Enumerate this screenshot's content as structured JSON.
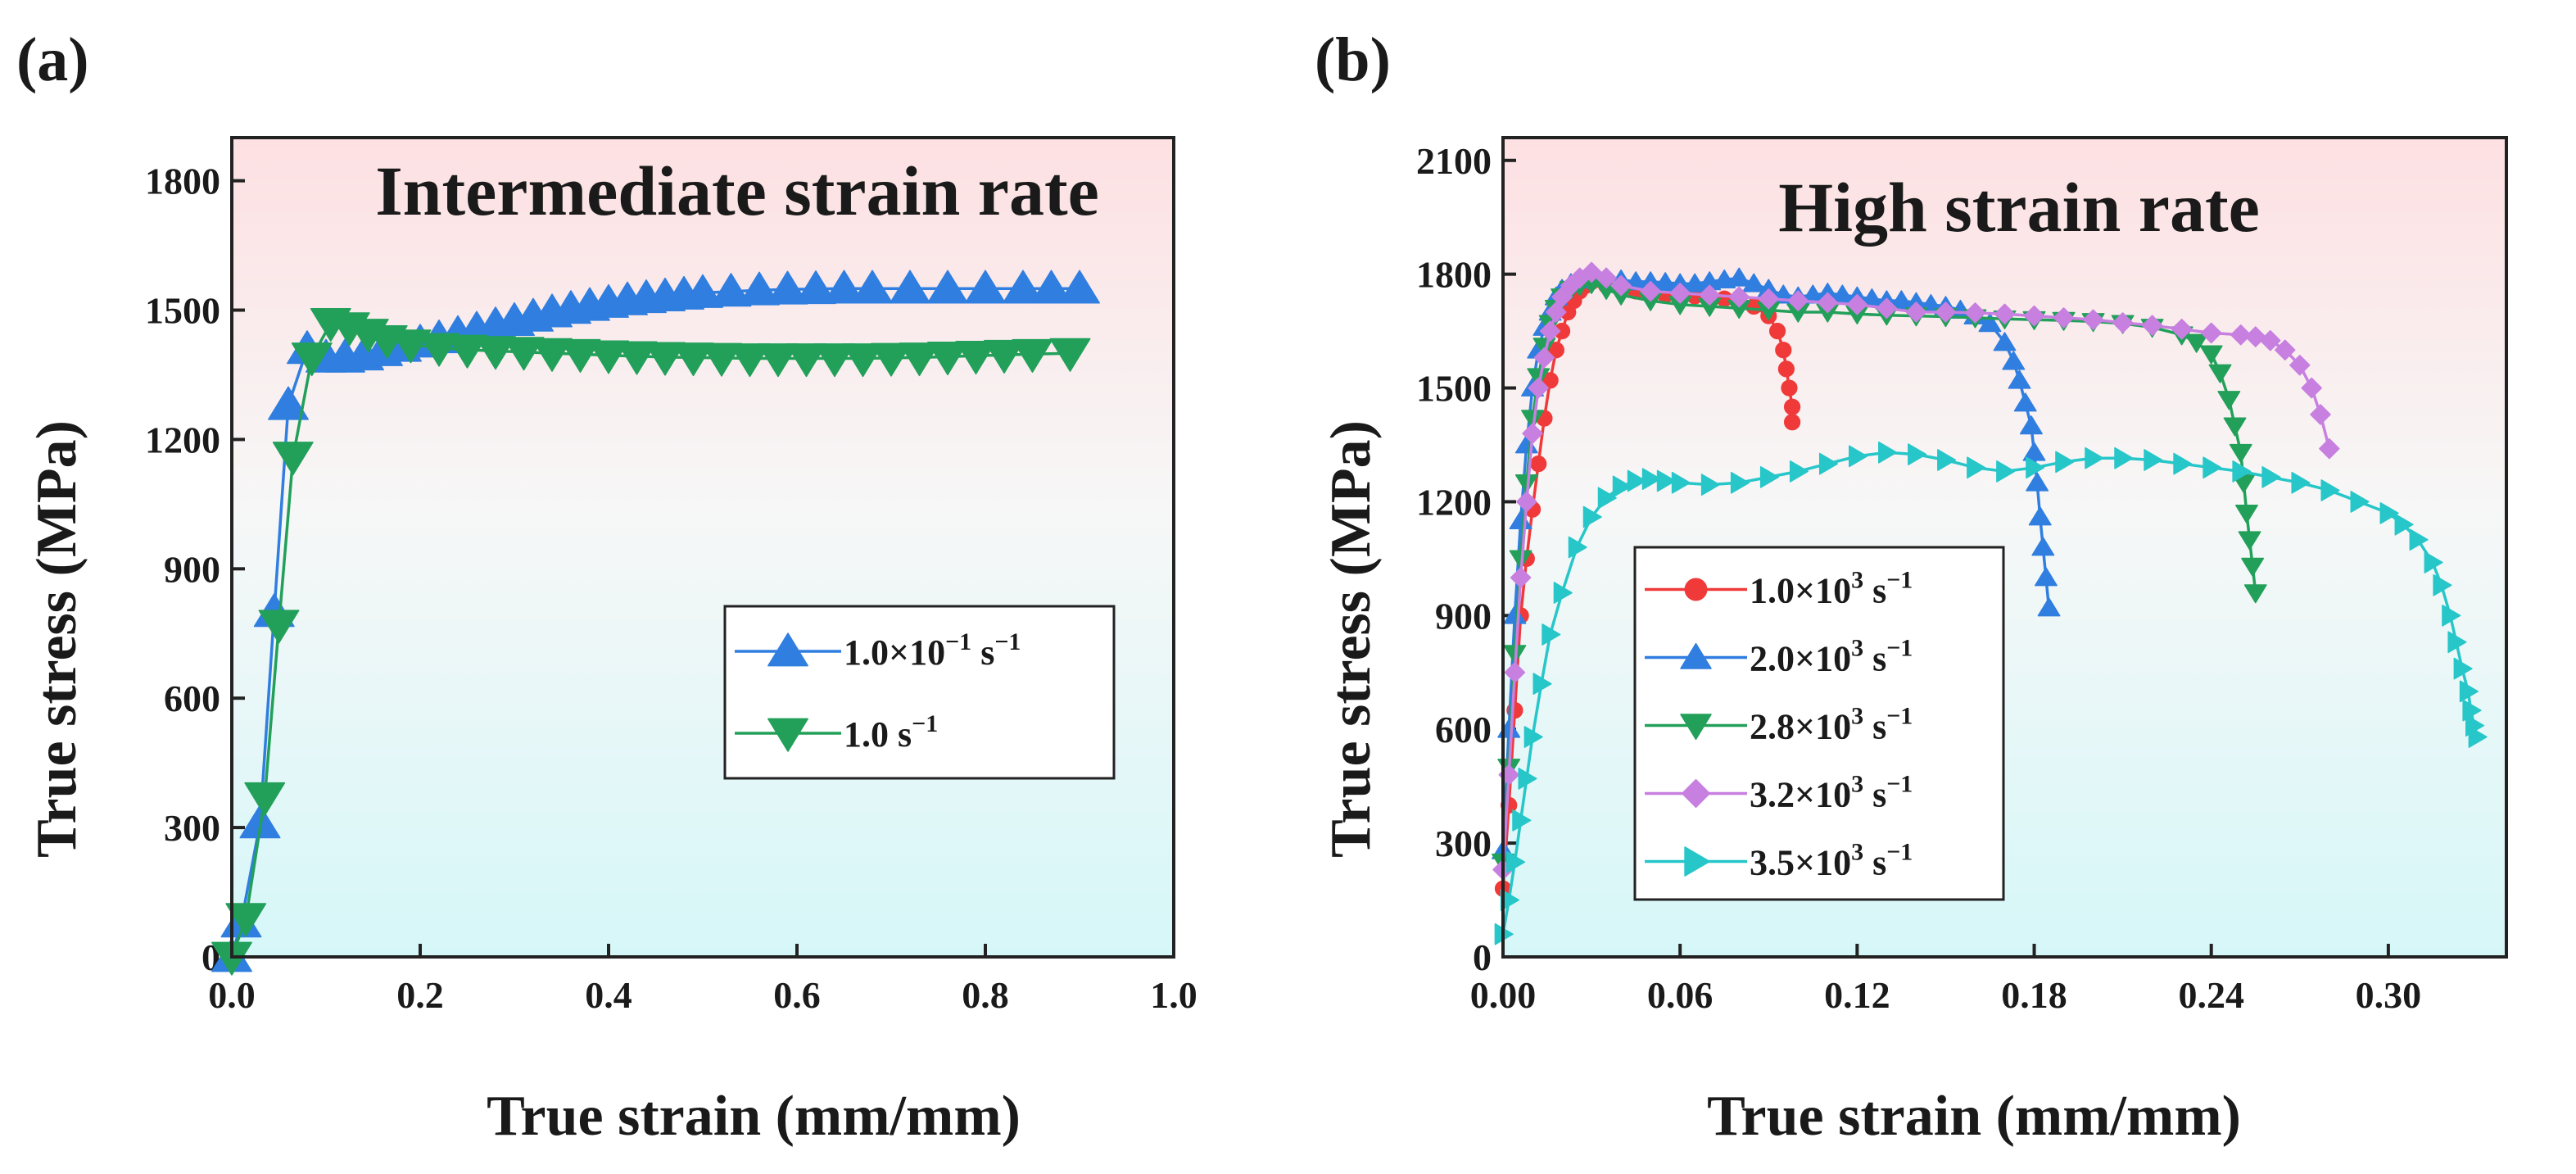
{
  "chart_data": [
    {
      "type": "line",
      "panel_label": "(a)",
      "annotation": "Intermediate strain rate",
      "annotation_color": "#1a1ae6",
      "xlabel": "True strain (mm/mm)",
      "ylabel": "True stress (MPa)",
      "xlim": [
        0,
        1.0
      ],
      "ylim": [
        0,
        1900
      ],
      "xticks": [
        0.0,
        0.2,
        0.4,
        0.6,
        0.8,
        1.0
      ],
      "xtick_labels": [
        "0.0",
        "0.2",
        "0.4",
        "0.6",
        "0.8",
        "1.0"
      ],
      "yticks": [
        0,
        300,
        600,
        900,
        1200,
        1500,
        1800
      ],
      "ytick_labels": [
        "0",
        "300",
        "600",
        "900",
        "1200",
        "1500",
        "1800"
      ],
      "background_gradient": [
        "#fde0e2",
        "#f7f7f7",
        "#d6f7f8"
      ],
      "legend": {
        "position": "center-right"
      },
      "series": [
        {
          "name": "1.0×10",
          "label_sup": "−1",
          "label_unit": " s",
          "label_unit_sup": "−1",
          "marker": "triangle-up",
          "color": "#2f7ee0",
          "x": [
            0.0,
            0.01,
            0.03,
            0.045,
            0.06,
            0.08,
            0.1,
            0.12,
            0.14,
            0.16,
            0.18,
            0.2,
            0.22,
            0.24,
            0.26,
            0.28,
            0.3,
            0.32,
            0.34,
            0.36,
            0.38,
            0.4,
            0.42,
            0.44,
            0.46,
            0.48,
            0.5,
            0.53,
            0.56,
            0.59,
            0.62,
            0.65,
            0.68,
            0.72,
            0.76,
            0.8,
            0.84,
            0.87,
            0.9
          ],
          "y": [
            0,
            80,
            310,
            800,
            1280,
            1410,
            1390,
            1390,
            1395,
            1405,
            1415,
            1425,
            1435,
            1445,
            1455,
            1465,
            1475,
            1485,
            1495,
            1503,
            1510,
            1517,
            1523,
            1528,
            1532,
            1536,
            1540,
            1543,
            1546,
            1548,
            1549,
            1550,
            1550,
            1550,
            1550,
            1550,
            1550,
            1550,
            1550
          ]
        },
        {
          "name": "1.0",
          "label_sup": "",
          "label_unit": " s",
          "label_unit_sup": "−1",
          "marker": "triangle-down",
          "color": "#22a05a",
          "x": [
            0.0,
            0.015,
            0.035,
            0.05,
            0.065,
            0.085,
            0.105,
            0.125,
            0.145,
            0.165,
            0.19,
            0.22,
            0.25,
            0.28,
            0.31,
            0.34,
            0.37,
            0.4,
            0.43,
            0.46,
            0.49,
            0.52,
            0.55,
            0.58,
            0.61,
            0.64,
            0.67,
            0.7,
            0.73,
            0.76,
            0.79,
            0.82,
            0.85,
            0.89
          ],
          "y": [
            0,
            90,
            370,
            770,
            1160,
            1390,
            1470,
            1460,
            1445,
            1430,
            1420,
            1412,
            1408,
            1405,
            1403,
            1400,
            1398,
            1395,
            1393,
            1391,
            1390,
            1389,
            1388,
            1388,
            1388,
            1388,
            1388,
            1389,
            1390,
            1392,
            1394,
            1396,
            1398,
            1400
          ]
        }
      ]
    },
    {
      "type": "line",
      "panel_label": "(b)",
      "annotation": "High strain rate",
      "annotation_color": "#f0202a",
      "xlabel": "True strain (mm/mm)",
      "ylabel": "True stress (MPa)",
      "xlim": [
        0,
        0.34
      ],
      "ylim": [
        0,
        2160
      ],
      "xticks": [
        0.0,
        0.06,
        0.12,
        0.18,
        0.24,
        0.3
      ],
      "xtick_labels": [
        "0.00",
        "0.06",
        "0.12",
        "0.18",
        "0.24",
        "0.30"
      ],
      "yticks": [
        0,
        300,
        600,
        900,
        1200,
        1500,
        1800,
        2100
      ],
      "ytick_labels": [
        "0",
        "300",
        "600",
        "900",
        "1200",
        "1500",
        "1800",
        "2100"
      ],
      "background_gradient": [
        "#fde0e2",
        "#f7f7f7",
        "#d6f7f8"
      ],
      "legend": {
        "position": "lower-left"
      },
      "series": [
        {
          "name": "1.0×10",
          "label_sup": "3",
          "label_unit": " s",
          "label_unit_sup": "−1",
          "marker": "circle",
          "color": "#f03a3a",
          "x": [
            0.0,
            0.002,
            0.004,
            0.006,
            0.008,
            0.01,
            0.012,
            0.014,
            0.016,
            0.018,
            0.02,
            0.022,
            0.024,
            0.026,
            0.028,
            0.03,
            0.035,
            0.04,
            0.045,
            0.05,
            0.055,
            0.06,
            0.065,
            0.07,
            0.075,
            0.08,
            0.085,
            0.09,
            0.093,
            0.095,
            0.096,
            0.097,
            0.098,
            0.098
          ],
          "y": [
            180,
            400,
            650,
            900,
            1050,
            1180,
            1300,
            1420,
            1520,
            1600,
            1650,
            1700,
            1730,
            1755,
            1770,
            1780,
            1770,
            1760,
            1755,
            1750,
            1745,
            1745,
            1742,
            1740,
            1735,
            1730,
            1715,
            1690,
            1650,
            1600,
            1550,
            1500,
            1450,
            1410
          ]
        },
        {
          "name": "2.0×10",
          "label_sup": "3",
          "label_unit": " s",
          "label_unit_sup": "−1",
          "marker": "triangle-up",
          "color": "#2f7ee0",
          "x": [
            0.0,
            0.002,
            0.004,
            0.006,
            0.008,
            0.01,
            0.012,
            0.014,
            0.016,
            0.018,
            0.02,
            0.023,
            0.026,
            0.03,
            0.035,
            0.04,
            0.045,
            0.05,
            0.055,
            0.06,
            0.065,
            0.07,
            0.075,
            0.08,
            0.085,
            0.09,
            0.095,
            0.1,
            0.105,
            0.11,
            0.115,
            0.12,
            0.125,
            0.13,
            0.135,
            0.14,
            0.145,
            0.15,
            0.155,
            0.16,
            0.165,
            0.17,
            0.173,
            0.175,
            0.177,
            0.179,
            0.18,
            0.181,
            0.182,
            0.183,
            0.184,
            0.185
          ],
          "y": [
            280,
            600,
            900,
            1150,
            1350,
            1500,
            1600,
            1660,
            1700,
            1740,
            1760,
            1775,
            1785,
            1795,
            1790,
            1785,
            1780,
            1780,
            1778,
            1775,
            1775,
            1780,
            1785,
            1790,
            1775,
            1760,
            1745,
            1740,
            1745,
            1750,
            1745,
            1740,
            1735,
            1730,
            1730,
            1725,
            1720,
            1715,
            1705,
            1690,
            1670,
            1620,
            1570,
            1520,
            1460,
            1400,
            1330,
            1250,
            1160,
            1080,
            1000,
            920
          ]
        },
        {
          "name": "2.8×10",
          "label_sup": "3",
          "label_unit": " s",
          "label_unit_sup": "−1",
          "marker": "triangle-down",
          "color": "#22a05a",
          "x": [
            0.0,
            0.002,
            0.004,
            0.006,
            0.008,
            0.01,
            0.012,
            0.014,
            0.016,
            0.018,
            0.02,
            0.023,
            0.026,
            0.03,
            0.035,
            0.04,
            0.05,
            0.06,
            0.07,
            0.08,
            0.09,
            0.1,
            0.11,
            0.12,
            0.13,
            0.14,
            0.15,
            0.16,
            0.17,
            0.18,
            0.19,
            0.2,
            0.21,
            0.22,
            0.23,
            0.235,
            0.24,
            0.243,
            0.246,
            0.248,
            0.25,
            0.251,
            0.252,
            0.253,
            0.254,
            0.255
          ],
          "y": [
            250,
            500,
            800,
            1050,
            1250,
            1420,
            1530,
            1610,
            1670,
            1710,
            1740,
            1760,
            1770,
            1775,
            1760,
            1745,
            1730,
            1720,
            1715,
            1710,
            1705,
            1700,
            1700,
            1695,
            1692,
            1690,
            1688,
            1685,
            1682,
            1680,
            1678,
            1675,
            1670,
            1660,
            1640,
            1620,
            1590,
            1540,
            1470,
            1400,
            1330,
            1250,
            1170,
            1100,
            1030,
            960
          ]
        },
        {
          "name": "3.2×10",
          "label_sup": "3",
          "label_unit": " s",
          "label_unit_sup": "−1",
          "marker": "diamond",
          "color": "#c77fe0",
          "x": [
            0.0,
            0.002,
            0.004,
            0.006,
            0.008,
            0.01,
            0.012,
            0.014,
            0.016,
            0.018,
            0.02,
            0.023,
            0.026,
            0.03,
            0.035,
            0.04,
            0.05,
            0.06,
            0.07,
            0.08,
            0.09,
            0.1,
            0.11,
            0.12,
            0.13,
            0.14,
            0.15,
            0.16,
            0.17,
            0.18,
            0.19,
            0.2,
            0.21,
            0.22,
            0.23,
            0.24,
            0.25,
            0.255,
            0.26,
            0.265,
            0.27,
            0.274,
            0.277,
            0.28
          ],
          "y": [
            230,
            480,
            750,
            1000,
            1200,
            1380,
            1500,
            1580,
            1650,
            1700,
            1740,
            1770,
            1790,
            1805,
            1790,
            1770,
            1755,
            1750,
            1745,
            1740,
            1735,
            1730,
            1725,
            1720,
            1710,
            1700,
            1700,
            1698,
            1695,
            1690,
            1685,
            1680,
            1672,
            1665,
            1655,
            1645,
            1640,
            1635,
            1625,
            1600,
            1560,
            1500,
            1430,
            1340
          ]
        },
        {
          "name": "3.5×10",
          "label_sup": "3",
          "label_unit": " s",
          "label_unit_sup": "−1",
          "marker": "triangle-right",
          "color": "#26c6c9",
          "x": [
            0.0,
            0.002,
            0.004,
            0.006,
            0.008,
            0.01,
            0.013,
            0.016,
            0.02,
            0.025,
            0.03,
            0.035,
            0.04,
            0.045,
            0.05,
            0.055,
            0.06,
            0.07,
            0.08,
            0.09,
            0.1,
            0.11,
            0.12,
            0.13,
            0.14,
            0.15,
            0.16,
            0.17,
            0.18,
            0.19,
            0.2,
            0.21,
            0.22,
            0.23,
            0.24,
            0.25,
            0.26,
            0.27,
            0.28,
            0.29,
            0.3,
            0.305,
            0.31,
            0.315,
            0.318,
            0.321,
            0.323,
            0.325,
            0.327,
            0.328,
            0.329,
            0.33
          ],
          "y": [
            60,
            150,
            250,
            360,
            470,
            580,
            720,
            850,
            960,
            1080,
            1160,
            1210,
            1240,
            1255,
            1260,
            1255,
            1250,
            1245,
            1250,
            1265,
            1280,
            1300,
            1320,
            1330,
            1325,
            1310,
            1290,
            1280,
            1290,
            1305,
            1315,
            1315,
            1310,
            1300,
            1290,
            1280,
            1265,
            1250,
            1230,
            1200,
            1170,
            1140,
            1100,
            1040,
            980,
            900,
            830,
            760,
            700,
            650,
            610,
            580
          ]
        }
      ]
    }
  ]
}
